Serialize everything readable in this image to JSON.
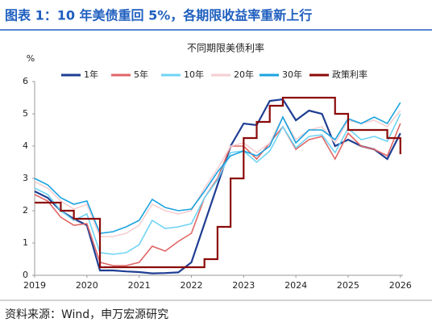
{
  "header": {
    "title": "图表 1：10 年美债重回 5%，各期限收益率重新上行"
  },
  "chart_data": {
    "type": "line",
    "title": "不同期限美债利率",
    "y_label": "%",
    "x": [
      2019.0,
      2019.25,
      2019.5,
      2019.75,
      2020.0,
      2020.25,
      2020.5,
      2020.75,
      2021.0,
      2021.25,
      2021.5,
      2021.75,
      2022.0,
      2022.25,
      2022.5,
      2022.75,
      2023.0,
      2023.25,
      2023.5,
      2023.75,
      2024.0,
      2024.25,
      2024.5,
      2024.75,
      2025.0,
      2025.25,
      2025.5,
      2025.75,
      2026.0
    ],
    "series": [
      {
        "name": "1年",
        "color": "#1f3e93",
        "values": [
          2.6,
          2.4,
          2.0,
          1.75,
          1.55,
          0.15,
          0.15,
          0.12,
          0.1,
          0.06,
          0.07,
          0.09,
          0.4,
          1.6,
          2.8,
          4.0,
          4.7,
          4.65,
          5.4,
          5.45,
          4.8,
          5.1,
          5.0,
          4.0,
          4.2,
          4.0,
          3.9,
          3.6,
          4.4
        ]
      },
      {
        "name": "5年",
        "color": "#e06666",
        "values": [
          2.5,
          2.3,
          1.8,
          1.55,
          1.6,
          0.4,
          0.3,
          0.3,
          0.4,
          0.9,
          0.75,
          1.05,
          1.3,
          2.4,
          3.0,
          4.0,
          4.0,
          3.6,
          4.1,
          4.6,
          3.9,
          4.2,
          4.3,
          3.6,
          4.4,
          4.0,
          3.9,
          3.7,
          4.7
        ]
      },
      {
        "name": "10年",
        "color": "#6fd4f5",
        "values": [
          2.7,
          2.5,
          2.0,
          1.7,
          1.9,
          0.7,
          0.65,
          0.7,
          0.95,
          1.7,
          1.45,
          1.5,
          1.6,
          2.4,
          2.95,
          3.8,
          3.85,
          3.5,
          3.85,
          4.6,
          3.95,
          4.3,
          4.35,
          3.8,
          4.55,
          4.2,
          4.3,
          4.15,
          5.0
        ]
      },
      {
        "name": "20年",
        "color": "#f5cfd2",
        "values": [
          2.9,
          2.7,
          2.3,
          2.05,
          2.2,
          1.2,
          1.2,
          1.3,
          1.55,
          2.2,
          2.0,
          1.9,
          2.0,
          2.7,
          3.3,
          4.0,
          4.1,
          3.8,
          4.1,
          4.9,
          4.2,
          4.5,
          4.6,
          4.1,
          4.8,
          4.7,
          4.8,
          4.6,
          5.1
        ]
      },
      {
        "name": "30年",
        "color": "#1aa3e0",
        "values": [
          3.0,
          2.8,
          2.4,
          2.2,
          2.3,
          1.3,
          1.35,
          1.5,
          1.7,
          2.35,
          2.1,
          2.0,
          2.05,
          2.6,
          3.2,
          3.7,
          3.85,
          3.7,
          4.0,
          4.9,
          4.1,
          4.5,
          4.5,
          4.2,
          4.85,
          4.7,
          4.9,
          4.7,
          5.35
        ]
      },
      {
        "name": "政策利率",
        "color": "#8b0a0a",
        "step": true,
        "values": [
          2.25,
          2.25,
          2.0,
          1.75,
          1.75,
          0.25,
          0.25,
          0.25,
          0.25,
          0.25,
          0.25,
          0.25,
          0.25,
          0.5,
          1.5,
          3.0,
          4.25,
          4.75,
          5.25,
          5.5,
          5.5,
          5.5,
          5.5,
          5.0,
          4.5,
          4.5,
          4.5,
          4.25,
          3.75
        ]
      }
    ],
    "xlim": [
      2019,
      2026.05
    ],
    "xticks": [
      2019,
      2020,
      2021,
      2022,
      2023,
      2024,
      2025,
      2026
    ],
    "ylim": [
      0,
      6
    ],
    "yticks": [
      0,
      1,
      2,
      3,
      4,
      5,
      6
    ]
  },
  "footer": {
    "source": "资料来源：Wind，申万宏源研究"
  }
}
